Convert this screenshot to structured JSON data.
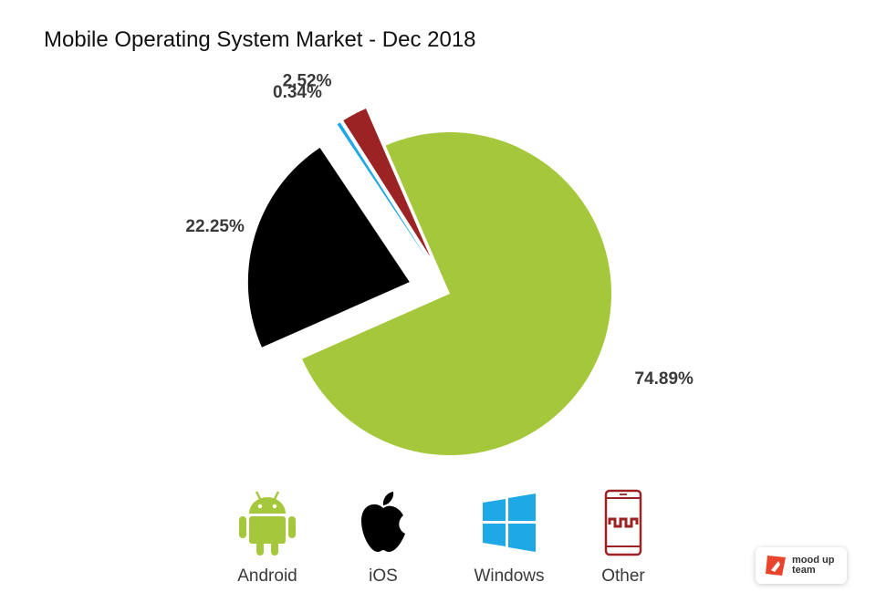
{
  "title": "Mobile Operating System Market - Dec 2018",
  "chart_data": {
    "type": "pie",
    "title": "Mobile Operating System Market - Dec 2018",
    "slices": [
      {
        "name": "Android",
        "value": 74.89,
        "label": "74.89%",
        "color": "#a5c73b"
      },
      {
        "name": "iOS",
        "value": 22.25,
        "label": "22.25%",
        "color": "#000000"
      },
      {
        "name": "Windows",
        "value": 0.34,
        "label": "0.34%",
        "color": "#1fa8e6"
      },
      {
        "name": "Other",
        "value": 2.52,
        "label": "2.52%",
        "color": "#9b2324"
      }
    ],
    "legend_placement": "bottom"
  },
  "legend": [
    {
      "label": "Android",
      "icon": "android-icon",
      "color": "#a5c73b"
    },
    {
      "label": "iOS",
      "icon": "apple-icon",
      "color": "#000000"
    },
    {
      "label": "Windows",
      "icon": "windows-icon",
      "color": "#1fa8e6"
    },
    {
      "label": "Other",
      "icon": "phone-icon",
      "color": "#9b2324"
    }
  ],
  "badge": {
    "text": "mood up\nteam",
    "color": "#e8452c"
  }
}
